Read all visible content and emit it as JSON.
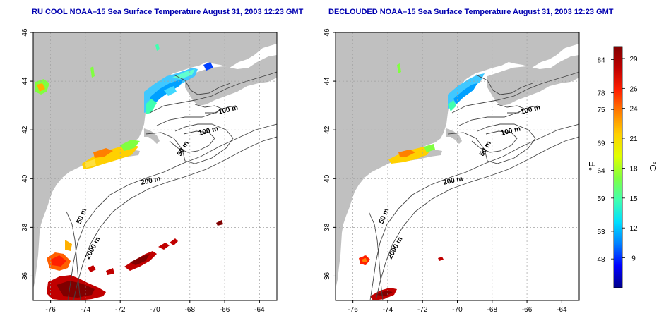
{
  "panels": [
    {
      "title": "RU COOL NOAA–15 Sea Surface Temperature August 31, 2003 12:23 GMT",
      "x_ticks": [
        "-76",
        "-74",
        "-72",
        "-70",
        "-68",
        "-66",
        "-64"
      ],
      "y_ticks": [
        "36",
        "38",
        "40",
        "42",
        "44",
        "46"
      ],
      "contour_labels": [
        "100 m",
        "100 m",
        "50 m",
        "200 m",
        "50 m",
        "2000 m"
      ]
    },
    {
      "title": "DECLOUDED NOAA–15 Sea Surface Temperature August 31, 2003 12:23 GMT",
      "x_ticks": [
        "-76",
        "-74",
        "-72",
        "-70",
        "-68",
        "-66",
        "-64"
      ],
      "y_ticks": [
        "36",
        "38",
        "40",
        "42",
        "44",
        "46"
      ],
      "contour_labels": [
        "100 m",
        "100 m",
        "50 m",
        "200 m",
        "50 m",
        "2000 m"
      ]
    }
  ],
  "colorbar": {
    "unit_f": "°F",
    "unit_c": "°C",
    "f_ticks": [
      "84",
      "78",
      "75",
      "69",
      "64",
      "59",
      "53",
      "48"
    ],
    "c_ticks": [
      "29",
      "26",
      "24",
      "21",
      "18",
      "15",
      "12",
      "9"
    ],
    "gradient_colors": [
      "#00008b",
      "#0000ff",
      "#0080ff",
      "#00e0ff",
      "#40ffb0",
      "#80ff40",
      "#e0ff00",
      "#ffd000",
      "#ff8000",
      "#ff2000",
      "#c00000",
      "#800000"
    ]
  },
  "colors": {
    "land": "#c0c0c0",
    "grid": "#a0a0a0",
    "contour": "#444444",
    "title": "#0000b0"
  }
}
